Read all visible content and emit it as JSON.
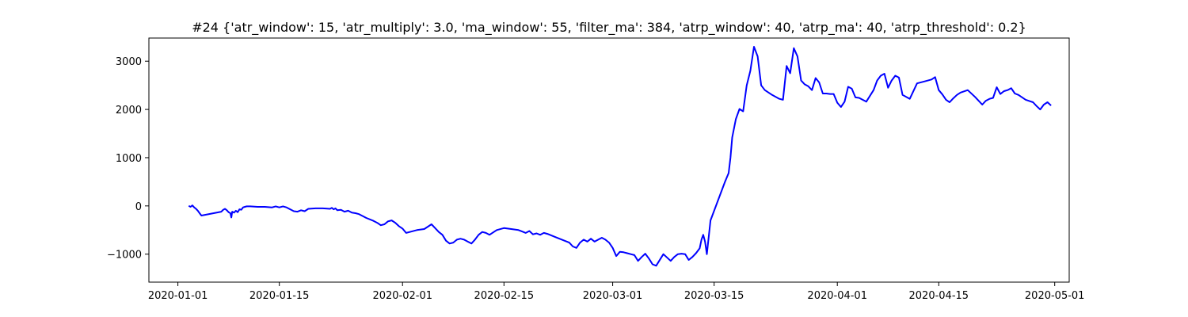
{
  "chart_data": {
    "type": "line",
    "title": "#24 {'atr_window': 15, 'atr_multiply': 3.0, 'ma_window': 55, 'filter_ma': 384, 'atrp_window': 40, 'atrp_ma': 40, 'atrp_threshold': 0.2}",
    "xlabel": "",
    "ylabel": "",
    "grid": false,
    "line_color": "#0000ff",
    "xlim": [
      "2019-12-28",
      "2020-05-03"
    ],
    "ylim": [
      -1580,
      3480
    ],
    "x_ticks": [
      "2020-01-01",
      "2020-01-15",
      "2020-02-01",
      "2020-02-15",
      "2020-03-01",
      "2020-03-15",
      "2020-04-01",
      "2020-04-15",
      "2020-05-01"
    ],
    "y_ticks": [
      -1000,
      0,
      1000,
      2000,
      3000
    ],
    "y_tick_labels": [
      "−1000",
      "0",
      "1000",
      "2000",
      "3000"
    ],
    "series": [
      {
        "x": [
          "2020-01-02 12:00",
          "2020-01-02 18:00",
          "2020-01-03 00:00",
          "2020-01-03 06:00",
          "2020-01-03 12:00",
          "2020-01-03 18:00",
          "2020-01-04 00:00",
          "2020-01-04 06:00",
          "2020-01-07 00:00",
          "2020-01-07 06:00",
          "2020-01-07 12:00",
          "2020-01-07 18:00",
          "2020-01-08 00:00",
          "2020-01-08 06:00",
          "2020-01-08 09:00",
          "2020-01-08 12:00",
          "2020-01-08 18:00",
          "2020-01-09 00:00",
          "2020-01-09 06:00",
          "2020-01-09 12:00",
          "2020-01-09 18:00",
          "2020-01-10 00:00",
          "2020-01-10 06:00",
          "2020-01-10 12:00",
          "2020-01-11 00:00",
          "2020-01-12 00:00",
          "2020-01-13 00:00",
          "2020-01-14 00:00",
          "2020-01-14 12:00",
          "2020-01-15 00:00",
          "2020-01-15 12:00",
          "2020-01-16 00:00",
          "2020-01-16 12:00",
          "2020-01-17 00:00",
          "2020-01-17 12:00",
          "2020-01-18 00:00",
          "2020-01-18 12:00",
          "2020-01-19 00:00",
          "2020-01-20 00:00",
          "2020-01-21 00:00",
          "2020-01-22 00:00",
          "2020-01-22 06:00",
          "2020-01-22 12:00",
          "2020-01-22 18:00",
          "2020-01-23 00:00",
          "2020-01-23 12:00",
          "2020-01-24 00:00",
          "2020-01-24 12:00",
          "2020-01-25 00:00",
          "2020-01-25 12:00",
          "2020-01-26 00:00",
          "2020-01-27 00:00",
          "2020-01-28 00:00",
          "2020-01-28 12:00",
          "2020-01-29 00:00",
          "2020-01-29 12:00",
          "2020-01-30 00:00",
          "2020-01-30 12:00",
          "2020-01-31 00:00",
          "2020-01-31 12:00",
          "2020-02-01 00:00",
          "2020-02-01 12:00",
          "2020-02-02 00:00",
          "2020-02-03 00:00",
          "2020-02-04 00:00",
          "2020-02-04 12:00",
          "2020-02-05 00:00",
          "2020-02-05 12:00",
          "2020-02-06 00:00",
          "2020-02-06 12:00",
          "2020-02-07 00:00",
          "2020-02-07 12:00",
          "2020-02-08 00:00",
          "2020-02-08 12:00",
          "2020-02-09 00:00",
          "2020-02-09 12:00",
          "2020-02-10 00:00",
          "2020-02-10 12:00",
          "2020-02-11 00:00",
          "2020-02-11 12:00",
          "2020-02-12 00:00",
          "2020-02-12 12:00",
          "2020-02-13 00:00",
          "2020-02-13 12:00",
          "2020-02-14 00:00",
          "2020-02-15 00:00",
          "2020-02-16 00:00",
          "2020-02-17 00:00",
          "2020-02-17 12:00",
          "2020-02-18 00:00",
          "2020-02-18 12:00",
          "2020-02-19 00:00",
          "2020-02-19 12:00",
          "2020-02-20 00:00",
          "2020-02-20 12:00",
          "2020-02-21 00:00",
          "2020-02-22 00:00",
          "2020-02-23 00:00",
          "2020-02-24 00:00",
          "2020-02-24 12:00",
          "2020-02-25 00:00",
          "2020-02-25 12:00",
          "2020-02-26 00:00",
          "2020-02-26 12:00",
          "2020-02-27 00:00",
          "2020-02-27 12:00",
          "2020-02-28 00:00",
          "2020-02-28 12:00",
          "2020-02-29 00:00",
          "2020-02-29 12:00",
          "2020-03-01 00:00",
          "2020-03-01 12:00",
          "2020-03-02 00:00",
          "2020-03-02 12:00",
          "2020-03-03 00:00",
          "2020-03-03 12:00",
          "2020-03-04 00:00",
          "2020-03-04 12:00",
          "2020-03-05 00:00",
          "2020-03-05 12:00",
          "2020-03-06 00:00",
          "2020-03-06 12:00",
          "2020-03-07 00:00",
          "2020-03-08 00:00",
          "2020-03-09 00:00",
          "2020-03-09 12:00",
          "2020-03-10 00:00",
          "2020-03-10 12:00",
          "2020-03-11 00:00",
          "2020-03-11 12:00",
          "2020-03-12 00:00",
          "2020-03-12 12:00",
          "2020-03-13 00:00",
          "2020-03-13 06:00",
          "2020-03-13 12:00",
          "2020-03-13 18:00",
          "2020-03-14 00:00",
          "2020-03-14 12:00",
          "2020-03-15 00:00",
          "2020-03-16 00:00",
          "2020-03-16 12:00",
          "2020-03-17 00:00",
          "2020-03-17 06:00",
          "2020-03-17 12:00",
          "2020-03-18 00:00",
          "2020-03-18 12:00",
          "2020-03-19 00:00",
          "2020-03-19 12:00",
          "2020-03-20 00:00",
          "2020-03-20 12:00",
          "2020-03-21 00:00",
          "2020-03-21 12:00",
          "2020-03-22 00:00",
          "2020-03-23 00:00",
          "2020-03-24 00:00",
          "2020-03-24 12:00",
          "2020-03-25 00:00",
          "2020-03-25 12:00",
          "2020-03-26 00:00",
          "2020-03-26 12:00",
          "2020-03-27 00:00",
          "2020-03-27 12:00",
          "2020-03-28 00:00",
          "2020-03-28 12:00",
          "2020-03-29 00:00",
          "2020-03-29 12:00",
          "2020-03-30 00:00",
          "2020-03-30 12:00",
          "2020-03-31 00:00",
          "2020-03-31 12:00",
          "2020-04-01 00:00",
          "2020-04-01 12:00",
          "2020-04-02 00:00",
          "2020-04-02 12:00",
          "2020-04-03 00:00",
          "2020-04-03 12:00",
          "2020-04-04 00:00",
          "2020-04-05 00:00",
          "2020-04-06 00:00",
          "2020-04-06 12:00",
          "2020-04-07 00:00",
          "2020-04-07 12:00",
          "2020-04-08 00:00",
          "2020-04-08 12:00",
          "2020-04-09 00:00",
          "2020-04-09 12:00",
          "2020-04-10 00:00",
          "2020-04-11 00:00",
          "2020-04-12 00:00",
          "2020-04-13 00:00",
          "2020-04-14 00:00",
          "2020-04-14 12:00",
          "2020-04-15 00:00",
          "2020-04-15 12:00",
          "2020-04-16 00:00",
          "2020-04-16 12:00",
          "2020-04-17 00:00",
          "2020-04-17 12:00",
          "2020-04-18 00:00",
          "2020-04-19 00:00",
          "2020-04-20 00:00",
          "2020-04-21 00:00",
          "2020-04-21 12:00",
          "2020-04-22 00:00",
          "2020-04-22 12:00",
          "2020-04-23 00:00",
          "2020-04-23 12:00",
          "2020-04-24 00:00",
          "2020-04-24 12:00",
          "2020-04-25 00:00",
          "2020-04-25 12:00",
          "2020-04-26 00:00",
          "2020-04-27 00:00",
          "2020-04-28 00:00",
          "2020-04-28 12:00",
          "2020-04-29 00:00",
          "2020-04-29 12:00",
          "2020-04-30 00:00",
          "2020-04-30 12:00"
        ],
        "y": [
          0,
          -20,
          10,
          -30,
          -60,
          -100,
          -150,
          -200,
          -120,
          -80,
          -60,
          -90,
          -130,
          -150,
          -240,
          -120,
          -140,
          -100,
          -130,
          -70,
          -80,
          -30,
          -20,
          -10,
          -10,
          -20,
          -20,
          -30,
          -10,
          -30,
          -10,
          -30,
          -70,
          -110,
          -120,
          -90,
          -110,
          -60,
          -50,
          -50,
          -60,
          -40,
          -70,
          -50,
          -90,
          -80,
          -120,
          -100,
          -140,
          -150,
          -170,
          -250,
          -310,
          -350,
          -400,
          -380,
          -320,
          -300,
          -350,
          -420,
          -470,
          -560,
          -540,
          -500,
          -480,
          -430,
          -380,
          -460,
          -540,
          -600,
          -720,
          -780,
          -760,
          -700,
          -680,
          -700,
          -740,
          -780,
          -700,
          -600,
          -540,
          -560,
          -600,
          -550,
          -500,
          -460,
          -480,
          -500,
          -530,
          -560,
          -520,
          -590,
          -570,
          -600,
          -560,
          -580,
          -640,
          -700,
          -760,
          -840,
          -870,
          -760,
          -700,
          -740,
          -680,
          -740,
          -700,
          -660,
          -700,
          -760,
          -870,
          -1040,
          -950,
          -960,
          -980,
          -1000,
          -1020,
          -1140,
          -1060,
          -990,
          -1090,
          -1210,
          -1240,
          -1000,
          -1140,
          -1060,
          -1000,
          -990,
          -1000,
          -1120,
          -1060,
          -980,
          -880,
          -700,
          -600,
          -740,
          -1000,
          -300,
          -100,
          300,
          500,
          680,
          1000,
          1420,
          1800,
          2010,
          1960,
          2500,
          2800,
          3300,
          3100,
          2500,
          2400,
          2300,
          2220,
          2200,
          2900,
          2750,
          3270,
          3100,
          2600,
          2520,
          2480,
          2400,
          2650,
          2560,
          2330,
          2330,
          2320,
          2320,
          2140,
          2050,
          2160,
          2470,
          2430,
          2250,
          2240,
          2160,
          2400,
          2600,
          2700,
          2740,
          2450,
          2600,
          2700,
          2660,
          2300,
          2220,
          2540,
          2580,
          2620,
          2670,
          2400,
          2310,
          2200,
          2150,
          2230,
          2300,
          2350,
          2400,
          2260,
          2100,
          2180,
          2220,
          2240,
          2460,
          2320,
          2380,
          2400,
          2440,
          2330,
          2300,
          2200,
          2150,
          2070,
          2000,
          2100,
          2150,
          2080
        ]
      }
    ]
  }
}
